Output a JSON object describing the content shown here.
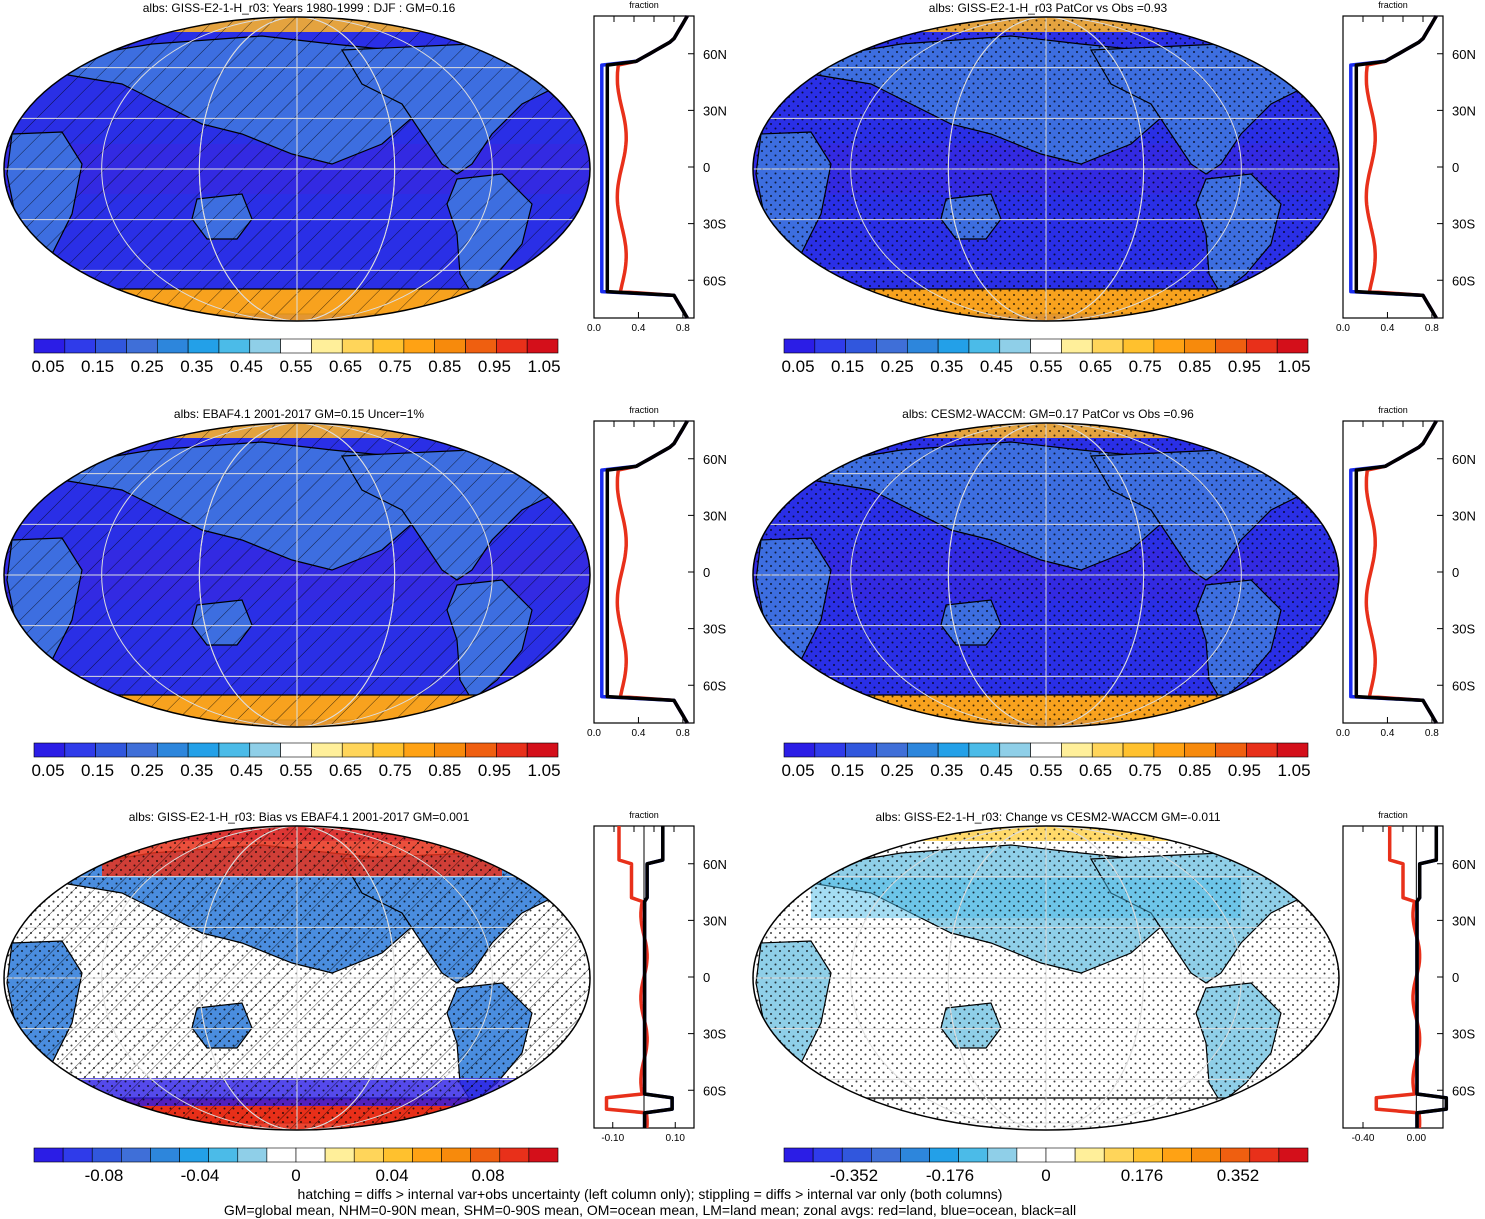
{
  "panels": [
    {
      "title": "albs: GISS-E2-1-H_r03: Years 1980-1999 : DJF : GM=0.16",
      "map_style": "absolute",
      "hatched": true,
      "zonal": {
        "title": "fraction",
        "xticks": [
          "0.0",
          "0.4",
          "0.8"
        ],
        "xlim": [
          0,
          0.9
        ],
        "zero_line": false
      },
      "colorbar": {
        "labels": [
          "0.05",
          "0.15",
          "0.25",
          "0.35",
          "0.45",
          "0.55",
          "0.65",
          "0.75",
          "0.85",
          "0.95",
          "1.05"
        ],
        "colors": [
          "#2b1de6",
          "#2f3bea",
          "#3157dd",
          "#3f6fd8",
          "#2d86dc",
          "#23a0e8",
          "#4bbbe8",
          "#8fcfe8",
          "#ffffff",
          "#ffef9a",
          "#ffd55a",
          "#ffc12e",
          "#ffa214",
          "#f78a0c",
          "#ef5f10",
          "#e8301a",
          "#d40f1a"
        ]
      }
    },
    {
      "title": "albs: GISS-E2-1-H_r03 PatCor vs Obs =0.93",
      "map_style": "absolute",
      "hatched": false,
      "zonal": {
        "title": "fraction",
        "xticks": [
          "0.0",
          "0.4",
          "0.8"
        ],
        "xlim": [
          0,
          0.9
        ],
        "zero_line": false
      },
      "colorbar": {
        "labels": [
          "0.05",
          "0.15",
          "0.25",
          "0.35",
          "0.45",
          "0.55",
          "0.65",
          "0.75",
          "0.85",
          "0.95",
          "1.05"
        ],
        "colors": [
          "#2b1de6",
          "#2f3bea",
          "#3157dd",
          "#3f6fd8",
          "#2d86dc",
          "#23a0e8",
          "#4bbbe8",
          "#8fcfe8",
          "#ffffff",
          "#ffef9a",
          "#ffd55a",
          "#ffc12e",
          "#ffa214",
          "#f78a0c",
          "#ef5f10",
          "#e8301a",
          "#d40f1a"
        ]
      }
    },
    {
      "title": "albs: EBAF4.1 2001-2017 GM=0.15 Uncer=1%",
      "map_style": "absolute",
      "hatched": true,
      "zonal": {
        "title": "fraction",
        "xticks": [
          "0.0",
          "0.4",
          "0.8"
        ],
        "xlim": [
          0,
          0.9
        ],
        "zero_line": false
      },
      "colorbar": {
        "labels": [
          "0.05",
          "0.15",
          "0.25",
          "0.35",
          "0.45",
          "0.55",
          "0.65",
          "0.75",
          "0.85",
          "0.95",
          "1.05"
        ],
        "colors": [
          "#2b1de6",
          "#2f3bea",
          "#3157dd",
          "#3f6fd8",
          "#2d86dc",
          "#23a0e8",
          "#4bbbe8",
          "#8fcfe8",
          "#ffffff",
          "#ffef9a",
          "#ffd55a",
          "#ffc12e",
          "#ffa214",
          "#f78a0c",
          "#ef5f10",
          "#e8301a",
          "#d40f1a"
        ]
      }
    },
    {
      "title": "albs: CESM2-WACCM: GM=0.17 PatCor vs Obs =0.96",
      "map_style": "absolute",
      "hatched": false,
      "zonal": {
        "title": "fraction",
        "xticks": [
          "0.0",
          "0.4",
          "0.8"
        ],
        "xlim": [
          0,
          0.9
        ],
        "zero_line": false
      },
      "colorbar": {
        "labels": [
          "0.05",
          "0.15",
          "0.25",
          "0.35",
          "0.45",
          "0.55",
          "0.65",
          "0.75",
          "0.85",
          "0.95",
          "1.05"
        ],
        "colors": [
          "#2b1de6",
          "#2f3bea",
          "#3157dd",
          "#3f6fd8",
          "#2d86dc",
          "#23a0e8",
          "#4bbbe8",
          "#8fcfe8",
          "#ffffff",
          "#ffef9a",
          "#ffd55a",
          "#ffc12e",
          "#ffa214",
          "#f78a0c",
          "#ef5f10",
          "#e8301a",
          "#d40f1a"
        ]
      }
    },
    {
      "title": "albs: GISS-E2-1-H_r03: Bias vs EBAF4.1 2001-2017 GM=0.001",
      "map_style": "bias",
      "hatched": true,
      "zonal": {
        "title": "fraction",
        "xticks": [
          "-0.10",
          "0.10"
        ],
        "xlim": [
          -0.16,
          0.16
        ],
        "zero_line": true
      },
      "colorbar": {
        "labels": [
          "-0.08",
          "-0.04",
          "0",
          "0.04",
          "0.08"
        ],
        "colors": [
          "#2b1de6",
          "#2f3bea",
          "#3157dd",
          "#3f6fd8",
          "#2d86dc",
          "#23a0e8",
          "#4bbbe8",
          "#8fcfe8",
          "#ffffff",
          "#ffffff",
          "#ffef9a",
          "#ffd55a",
          "#ffc12e",
          "#ffa214",
          "#f78a0c",
          "#ef5f10",
          "#e8301a",
          "#d40f1a"
        ]
      }
    },
    {
      "title": "albs: GISS-E2-1-H_r03: Change vs CESM2-WACCM GM=-0.011",
      "map_style": "change",
      "hatched": false,
      "zonal": {
        "title": "fraction",
        "xticks": [
          "-0.40",
          "0.00"
        ],
        "xlim": [
          -0.55,
          0.2
        ],
        "zero_line": true
      },
      "colorbar": {
        "labels": [
          "-0.352",
          "-0.176",
          "0",
          "0.176",
          "0.352"
        ],
        "colors": [
          "#2b1de6",
          "#2f3bea",
          "#3157dd",
          "#3f6fd8",
          "#2d86dc",
          "#23a0e8",
          "#4bbbe8",
          "#8fcfe8",
          "#ffffff",
          "#ffffff",
          "#ffef9a",
          "#ffd55a",
          "#ffc12e",
          "#ffa214",
          "#f78a0c",
          "#ef5f10",
          "#e8301a",
          "#d40f1a"
        ]
      }
    }
  ],
  "zonal_lat_labels": [
    "60N",
    "30N",
    "0",
    "30S",
    "60S"
  ],
  "footer": {
    "line1": "hatching = diffs > internal var+obs uncertainty (left column only); stippling = diffs > internal var only (both columns)",
    "line2": "GM=global mean, NHM=0-90N mean, SHM=0-90S mean, OM=ocean mean, LM=land mean; zonal avgs: red=land, blue=ocean, black=all"
  },
  "colors": {
    "land": "#e8301a",
    "ocean": "#1a2cf0",
    "all": "#000000"
  }
}
